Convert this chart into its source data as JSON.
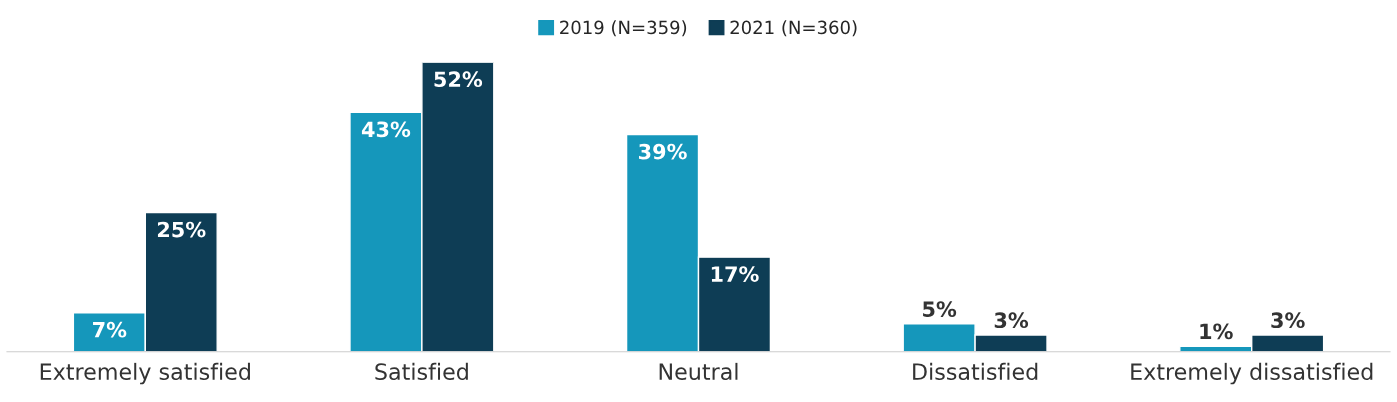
{
  "chart_data": {
    "type": "bar",
    "categories": [
      "Extremely satisfied",
      "Satisfied",
      "Neutral",
      "Dissatisfied",
      "Extremely dissatisfied"
    ],
    "series": [
      {
        "name": "2019 (N=359)",
        "color": "#1597bb",
        "values": [
          7,
          43,
          39,
          5,
          1
        ],
        "value_labels": [
          "7%",
          "43%",
          "39%",
          "5%",
          "1%"
        ]
      },
      {
        "name": "2021 (N=360)",
        "color": "#0e3d55",
        "values": [
          25,
          52,
          17,
          3,
          3
        ],
        "value_labels": [
          "25%",
          "52%",
          "17%",
          "3%",
          "3%"
        ]
      }
    ],
    "legend": "top",
    "grid": false
  }
}
